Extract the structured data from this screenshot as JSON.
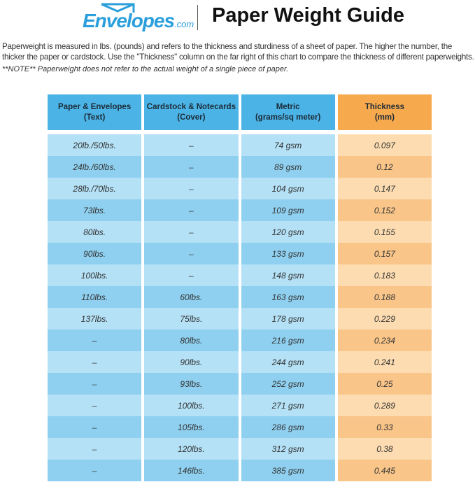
{
  "header": {
    "logo_text": "Envelopes",
    "logo_suffix": ".com",
    "title": "Paper Weight Guide"
  },
  "description": "Paperweight is measured in lbs. (pounds) and refers to the thickness and sturdiness of a sheet of paper. The higher the number, the thicker the paper or cardstock. Use the \"Thickness\" column on the far right of this chart to compare the thickness of different paperweights.",
  "note": "**NOTE** Paperweight does not refer to the actual weight of a single piece of paper.",
  "colors": {
    "blue_header": "#4cb3e6",
    "orange_header": "#f7a94d",
    "blue_light": "#b4e1f6",
    "blue_dark": "#8fd0f0",
    "orange_light": "#fcdcb0",
    "orange_dark": "#f9c589"
  },
  "table": {
    "headers": [
      [
        "Paper & Envelopes",
        "(Text)"
      ],
      [
        "Cardstock & Notecards",
        "(Cover)"
      ],
      [
        "Metric",
        "(grams/sq meter)"
      ],
      [
        "Thickness",
        "(mm)"
      ]
    ],
    "rows": [
      [
        "20lb./50lbs.",
        "–",
        "74 gsm",
        "0.097"
      ],
      [
        "24lb./60lbs.",
        "–",
        "89 gsm",
        "0.12"
      ],
      [
        "28lb./70lbs.",
        "–",
        "104 gsm",
        "0.147"
      ],
      [
        "73lbs.",
        "–",
        "109 gsm",
        "0.152"
      ],
      [
        "80lbs.",
        "–",
        "120 gsm",
        "0.155"
      ],
      [
        "90lbs.",
        "–",
        "133 gsm",
        "0.157"
      ],
      [
        "100lbs.",
        "–",
        "148 gsm",
        "0.183"
      ],
      [
        "110lbs.",
        "60lbs.",
        "163 gsm",
        "0.188"
      ],
      [
        "137lbs.",
        "75lbs.",
        "178 gsm",
        "0.229"
      ],
      [
        "–",
        "80lbs.",
        "216 gsm",
        "0.234"
      ],
      [
        "–",
        "90lbs.",
        "244 gsm",
        "0.241"
      ],
      [
        "–",
        "93lbs.",
        "252 gsm",
        "0.25"
      ],
      [
        "–",
        "100lbs.",
        "271 gsm",
        "0.289"
      ],
      [
        "–",
        "105lbs.",
        "286 gsm",
        "0.33"
      ],
      [
        "–",
        "120lbs.",
        "312 gsm",
        "0.38"
      ],
      [
        "–",
        "146lbs.",
        "385 gsm",
        "0.445"
      ]
    ]
  }
}
